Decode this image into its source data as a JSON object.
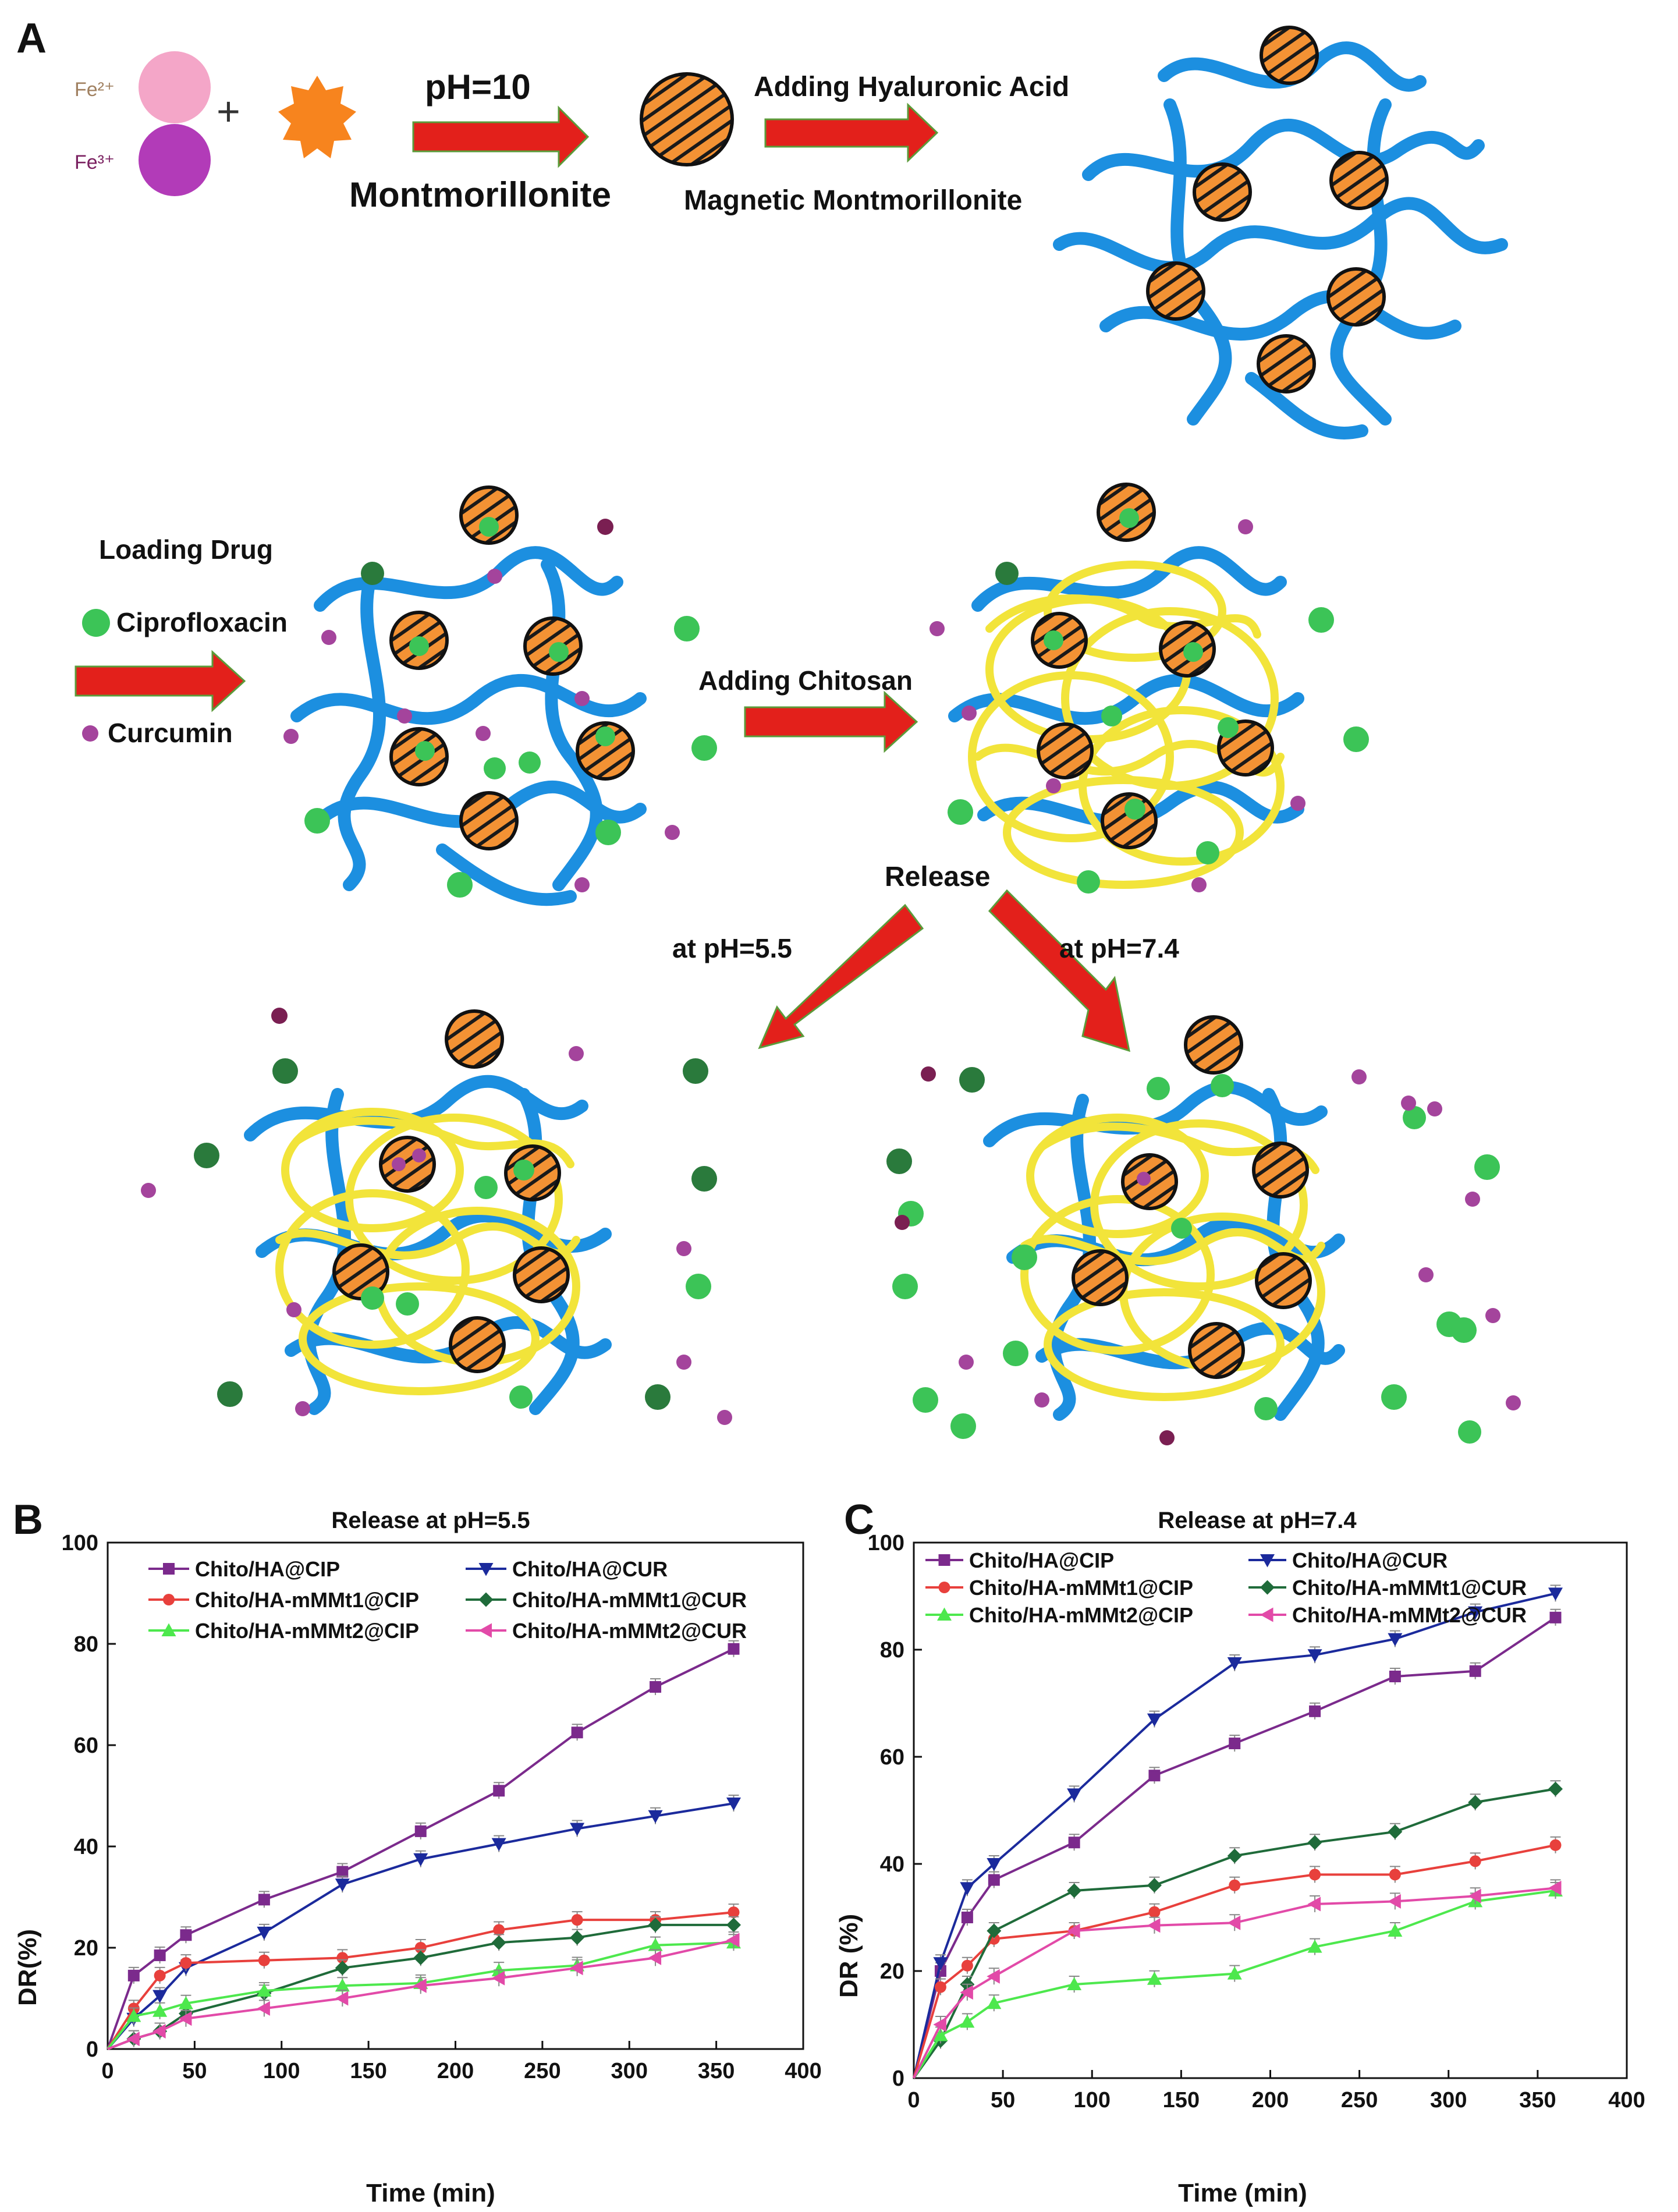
{
  "panel_labels": {
    "a": "A",
    "b": "B",
    "c": "C"
  },
  "scheme": {
    "fe2": "Fe²⁺",
    "fe3": "Fe³⁺",
    "plus": "+",
    "ph10": "pH=10",
    "montmorillonite": "Montmorillonite",
    "adding_ha": "Adding Hyaluronic Acid",
    "magnetic_mmt": "Magnetic Montmorillonite",
    "loading_drug": "Loading Drug",
    "ciprofloxacin": "Ciprofloxacin",
    "curcumin": "Curcumin",
    "adding_chitosan": "Adding Chitosan",
    "release": "Release",
    "at_ph55": "at pH=5.5",
    "at_ph74": "at pH=7.4",
    "colors": {
      "fe2": "#f4a6c8",
      "fe3": "#b23bb8",
      "mmt": "#f7841e",
      "nanoparticle": "#f39234",
      "ha_chain": "#1c8fe0",
      "chitosan": "#f2e43a",
      "cip_drug": "#3cc457",
      "cur_drug": "#a4449c",
      "arrow": "#e3201b",
      "cip_dark": "#2a7a3c",
      "cur_dark": "#7a1f52"
    }
  },
  "chart_data": [
    {
      "id": "B",
      "type": "line",
      "title": "Release at pH=5.5",
      "xlabel": "Time (min)",
      "ylabel": "DR(%)",
      "xlim": [
        0,
        400
      ],
      "ylim": [
        0,
        100
      ],
      "xticks": [
        0,
        50,
        100,
        150,
        200,
        250,
        300,
        350,
        400
      ],
      "yticks": [
        0,
        20,
        40,
        60,
        80,
        100
      ],
      "legend_position": "top-left",
      "series": [
        {
          "name": "Chito/HA@CIP",
          "color": "#7b2a8c",
          "marker": "square",
          "x": [
            0,
            15,
            30,
            45,
            90,
            135,
            180,
            225,
            270,
            315,
            360
          ],
          "y": [
            0,
            14.5,
            18.5,
            22.5,
            29.5,
            35,
            43,
            51,
            62.5,
            71.5,
            79
          ]
        },
        {
          "name": "Chito/HA@CUR",
          "color": "#1b2a9c",
          "marker": "triangle-down",
          "x": [
            0,
            15,
            30,
            45,
            90,
            135,
            180,
            225,
            270,
            315,
            360
          ],
          "y": [
            0,
            6,
            10.5,
            16,
            23,
            32.5,
            37.5,
            40.5,
            43.5,
            46,
            48.5
          ]
        },
        {
          "name": "Chito/HA-mMMt1@CIP",
          "color": "#e8403c",
          "marker": "circle",
          "x": [
            0,
            15,
            30,
            45,
            90,
            135,
            180,
            225,
            270,
            315,
            360
          ],
          "y": [
            0,
            8,
            14.5,
            17,
            17.5,
            18,
            20,
            23.5,
            25.5,
            25.5,
            27
          ]
        },
        {
          "name": "Chito/HA-mMMt1@CUR",
          "color": "#1f6b3a",
          "marker": "diamond",
          "x": [
            0,
            15,
            30,
            45,
            90,
            135,
            180,
            225,
            270,
            315,
            360
          ],
          "y": [
            0,
            2,
            3.5,
            7,
            11,
            16,
            18,
            21,
            22,
            24.5,
            24.5
          ]
        },
        {
          "name": "Chito/HA-mMMt2@CIP",
          "color": "#4de84d",
          "marker": "triangle-up",
          "x": [
            0,
            15,
            30,
            45,
            90,
            135,
            180,
            225,
            270,
            315,
            360
          ],
          "y": [
            0,
            6.5,
            7.5,
            9,
            11.5,
            12.5,
            13,
            15.5,
            16.5,
            20.5,
            21
          ]
        },
        {
          "name": "Chito/HA-mMMt2@CUR",
          "color": "#e24aa8",
          "marker": "triangle-left",
          "x": [
            0,
            15,
            30,
            45,
            90,
            135,
            180,
            225,
            270,
            315,
            360
          ],
          "y": [
            0,
            2,
            3.5,
            6,
            8,
            10,
            12.5,
            14,
            16,
            18,
            21.5
          ]
        }
      ]
    },
    {
      "id": "C",
      "type": "line",
      "title": "Release at pH=7.4",
      "xlabel": "Time (min)",
      "ylabel": "DR (%)",
      "xlim": [
        0,
        400
      ],
      "ylim": [
        0,
        100
      ],
      "xticks": [
        0,
        50,
        100,
        150,
        200,
        250,
        300,
        350,
        400
      ],
      "yticks": [
        0,
        20,
        40,
        60,
        80,
        100
      ],
      "legend_position": "top-left",
      "series": [
        {
          "name": "Chito/HA@CIP",
          "color": "#7b2a8c",
          "marker": "square",
          "x": [
            0,
            15,
            30,
            45,
            90,
            135,
            180,
            225,
            270,
            315,
            360
          ],
          "y": [
            0,
            20,
            30,
            37,
            44,
            56.5,
            62.5,
            68.5,
            75,
            76,
            86
          ]
        },
        {
          "name": "Chito/HA@CUR",
          "color": "#1b2a9c",
          "marker": "triangle-down",
          "x": [
            0,
            15,
            30,
            45,
            90,
            135,
            180,
            225,
            270,
            315,
            360
          ],
          "y": [
            0,
            21.5,
            35.5,
            40,
            53,
            67,
            77.5,
            79,
            82,
            87,
            90.5
          ]
        },
        {
          "name": "Chito/HA-mMMt1@CIP",
          "color": "#e8403c",
          "marker": "circle",
          "x": [
            0,
            15,
            30,
            45,
            90,
            135,
            180,
            225,
            270,
            315,
            360
          ],
          "y": [
            0,
            17,
            21,
            26,
            27.5,
            31,
            36,
            38,
            38,
            40.5,
            43.5
          ]
        },
        {
          "name": "Chito/HA-mMMt1@CUR",
          "color": "#1f6b3a",
          "marker": "diamond",
          "x": [
            0,
            15,
            30,
            45,
            90,
            135,
            180,
            225,
            270,
            315,
            360
          ],
          "y": [
            0,
            7,
            17.5,
            27.5,
            35,
            36,
            41.5,
            44,
            46,
            51.5,
            54
          ]
        },
        {
          "name": "Chito/HA-mMMt2@CIP",
          "color": "#4de84d",
          "marker": "triangle-up",
          "x": [
            0,
            15,
            30,
            45,
            90,
            135,
            180,
            225,
            270,
            315,
            360
          ],
          "y": [
            0,
            8,
            10.5,
            14,
            17.5,
            18.5,
            19.5,
            24.5,
            27.5,
            33,
            35
          ]
        },
        {
          "name": "Chito/HA-mMMt2@CUR",
          "color": "#e24aa8",
          "marker": "triangle-left",
          "x": [
            0,
            15,
            30,
            45,
            90,
            135,
            180,
            225,
            270,
            315,
            360
          ],
          "y": [
            0,
            10,
            16,
            19,
            27.5,
            28.5,
            29,
            32.5,
            33,
            34,
            35.5
          ]
        }
      ]
    }
  ]
}
